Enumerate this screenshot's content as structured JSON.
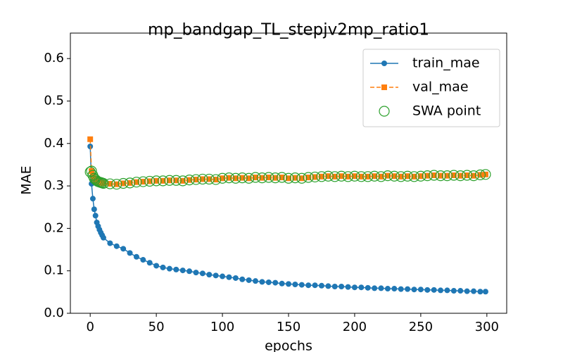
{
  "chart_data": {
    "type": "line",
    "title": "mp_bandgap_TL_stepjv2mp_ratio1",
    "x_label": "epochs",
    "y_label": "MAE",
    "x": [
      0,
      1,
      2,
      3,
      4,
      5,
      6,
      7,
      8,
      9,
      10,
      15,
      20,
      25,
      30,
      35,
      40,
      45,
      50,
      55,
      60,
      65,
      70,
      75,
      80,
      85,
      90,
      95,
      100,
      105,
      110,
      115,
      120,
      125,
      130,
      135,
      140,
      145,
      150,
      155,
      160,
      165,
      170,
      175,
      180,
      185,
      190,
      195,
      200,
      205,
      210,
      215,
      220,
      225,
      230,
      235,
      240,
      245,
      250,
      255,
      260,
      265,
      270,
      275,
      280,
      285,
      290,
      295,
      299
    ],
    "series": [
      {
        "name": "train_mae",
        "color": "#1f77b4",
        "style": "solid-circle",
        "values": [
          0.393,
          0.305,
          0.27,
          0.245,
          0.23,
          0.214,
          0.205,
          0.197,
          0.19,
          0.184,
          0.178,
          0.165,
          0.158,
          0.152,
          0.142,
          0.133,
          0.126,
          0.119,
          0.112,
          0.108,
          0.105,
          0.103,
          0.101,
          0.099,
          0.096,
          0.094,
          0.091,
          0.089,
          0.087,
          0.085,
          0.083,
          0.08,
          0.078,
          0.076,
          0.074,
          0.073,
          0.072,
          0.07,
          0.069,
          0.068,
          0.067,
          0.066,
          0.066,
          0.065,
          0.064,
          0.063,
          0.063,
          0.062,
          0.061,
          0.061,
          0.06,
          0.059,
          0.059,
          0.058,
          0.058,
          0.057,
          0.057,
          0.056,
          0.056,
          0.055,
          0.055,
          0.054,
          0.054,
          0.053,
          0.053,
          0.052,
          0.052,
          0.051,
          0.051
        ]
      },
      {
        "name": "val_mae",
        "color": "#ff7f0e",
        "style": "dashed-square",
        "values": [
          0.41,
          0.335,
          0.325,
          0.318,
          0.315,
          0.312,
          0.31,
          0.309,
          0.308,
          0.307,
          0.306,
          0.305,
          0.304,
          0.306,
          0.307,
          0.309,
          0.31,
          0.311,
          0.312,
          0.312,
          0.313,
          0.313,
          0.312,
          0.314,
          0.315,
          0.316,
          0.316,
          0.315,
          0.318,
          0.319,
          0.318,
          0.319,
          0.318,
          0.32,
          0.319,
          0.32,
          0.319,
          0.32,
          0.318,
          0.319,
          0.318,
          0.32,
          0.321,
          0.322,
          0.323,
          0.322,
          0.323,
          0.322,
          0.323,
          0.322,
          0.322,
          0.323,
          0.322,
          0.324,
          0.323,
          0.322,
          0.323,
          0.322,
          0.323,
          0.324,
          0.325,
          0.324,
          0.324,
          0.325,
          0.324,
          0.325,
          0.324,
          0.326,
          0.327
        ]
      },
      {
        "name": "SWA point",
        "color": "#2ca02c",
        "style": "hollow-circle",
        "values": [
          0.333,
          0.335,
          0.325,
          0.318,
          0.315,
          0.312,
          0.31,
          0.309,
          0.308,
          0.307,
          0.306,
          0.305,
          0.304,
          0.306,
          0.307,
          0.309,
          0.31,
          0.311,
          0.312,
          0.312,
          0.313,
          0.313,
          0.312,
          0.314,
          0.315,
          0.316,
          0.316,
          0.315,
          0.318,
          0.319,
          0.318,
          0.319,
          0.318,
          0.32,
          0.319,
          0.32,
          0.319,
          0.32,
          0.318,
          0.319,
          0.318,
          0.32,
          0.321,
          0.322,
          0.323,
          0.322,
          0.323,
          0.322,
          0.323,
          0.322,
          0.322,
          0.323,
          0.322,
          0.324,
          0.323,
          0.322,
          0.323,
          0.322,
          0.323,
          0.324,
          0.325,
          0.324,
          0.324,
          0.325,
          0.324,
          0.325,
          0.324,
          0.326,
          0.327
        ]
      }
    ],
    "xlim": [
      -15,
      315
    ],
    "ylim": [
      0,
      0.66
    ],
    "xticks": [
      0,
      50,
      100,
      150,
      200,
      250,
      300
    ],
    "yticks": [
      {
        "value": 0,
        "label": "0.0"
      },
      0.1,
      0.2,
      0.3,
      0.4,
      0.5,
      0.6
    ],
    "legend": "upper right",
    "grid": false
  }
}
